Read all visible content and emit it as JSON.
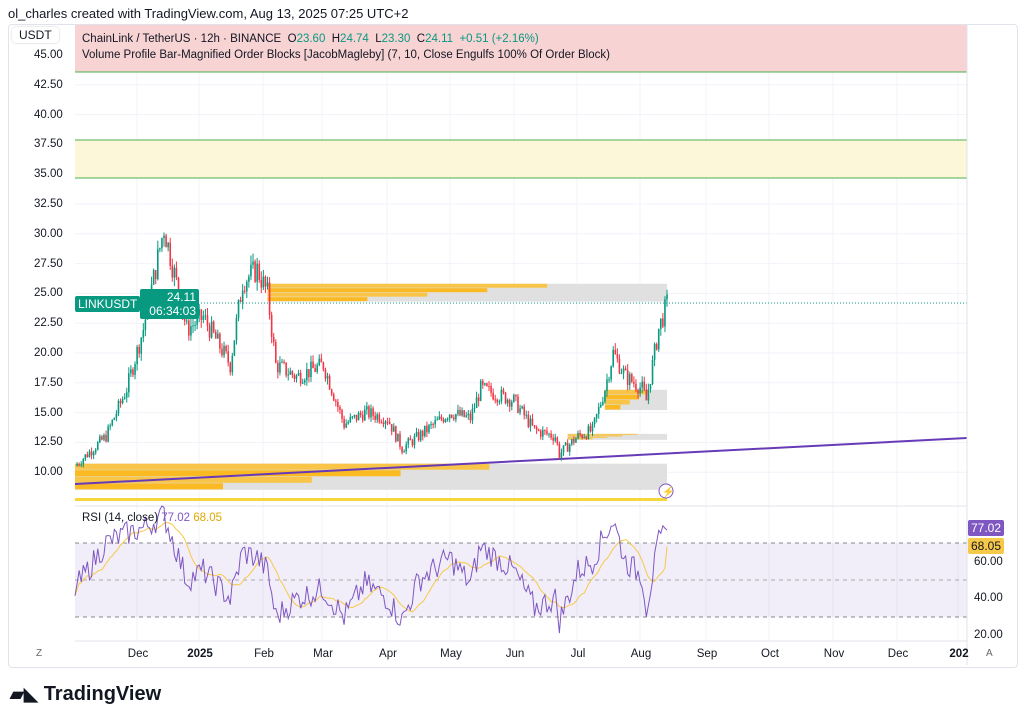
{
  "credit": "ol_charles created with TradingView.com, Aug 13, 2025 07:25 UTC+2",
  "currency": "USDT",
  "legend": {
    "symbol": "ChainLink / TetherUS · 12h · BINANCE",
    "o_label": "O",
    "o": "23.60",
    "h_label": "H",
    "h": "24.74",
    "l_label": "L",
    "l": "23.30",
    "c_label": "C",
    "c": "24.11",
    "change": "+0.51 (+2.16%)",
    "indicator": "Volume Profile Bar-Magnified Order Blocks [JacobMagleby] (7, 10, Close Engulfs 100% Of Order Block)"
  },
  "price_badge": {
    "symbol": "LINKUSDT",
    "price": "24.11",
    "countdown": "06:34:03"
  },
  "price_axis": [
    "45.00",
    "42.50",
    "40.00",
    "37.50",
    "35.00",
    "32.50",
    "30.00",
    "27.50",
    "25.00",
    "22.50",
    "20.00",
    "17.50",
    "15.00",
    "12.50",
    "10.00"
  ],
  "rsi": {
    "label": "RSI (14, close)",
    "value": "77.02",
    "ma": "68.05",
    "axis": [
      "60.00",
      "40.00",
      "20.00"
    ]
  },
  "time_axis": [
    "Dec",
    "2025",
    "Feb",
    "Mar",
    "Apr",
    "May",
    "Jun",
    "Jul",
    "Aug",
    "Sep",
    "Oct",
    "Nov",
    "Dec",
    "202"
  ],
  "buttons": {
    "z": "Z",
    "a": "A"
  },
  "brand": "TradingView",
  "colors": {
    "up": "#089981",
    "down": "#f23645",
    "rsi": "#7e57c2",
    "rsi_ma": "#f7c948",
    "trend": "#673ab7"
  },
  "chart_data": {
    "type": "candlestick",
    "symbol": "LINKUSDT",
    "interval": "12h",
    "dates": [
      "2024-10-31",
      "2024-11-15",
      "2024-11-25",
      "2024-12-03",
      "2024-12-13",
      "2024-12-24",
      "2025-01-01",
      "2025-01-14",
      "2025-01-20",
      "2025-01-27",
      "2025-02-01",
      "2025-02-05",
      "2025-02-15",
      "2025-02-28",
      "2025-03-10",
      "2025-03-20",
      "2025-03-31",
      "2025-04-07",
      "2025-04-15",
      "2025-04-30",
      "2025-05-10",
      "2025-05-15",
      "2025-05-31",
      "2025-06-10",
      "2025-06-20",
      "2025-06-22",
      "2025-07-01",
      "2025-07-08",
      "2025-07-14",
      "2025-07-18",
      "2025-07-24",
      "2025-08-01",
      "2025-08-03",
      "2025-08-09",
      "2025-08-13"
    ],
    "close": [
      10.5,
      13,
      17,
      22,
      30.5,
      22,
      23,
      19,
      26,
      27,
      25,
      19,
      18,
      19,
      14,
      15,
      14.5,
      12,
      13,
      15,
      14.5,
      17,
      16,
      13.5,
      13,
      11.5,
      13,
      13.5,
      17,
      20,
      18,
      17,
      16,
      22,
      24.11
    ],
    "rsi": [
      45,
      70,
      75,
      78,
      85,
      50,
      55,
      40,
      65,
      62,
      55,
      30,
      40,
      45,
      30,
      48,
      40,
      28,
      50,
      62,
      48,
      68,
      55,
      35,
      40,
      28,
      55,
      60,
      75,
      82,
      60,
      52,
      35,
      70,
      77
    ],
    "ylim": [
      8,
      45
    ],
    "rsi_levels": [
      70,
      50,
      30
    ],
    "zones": [
      {
        "type": "supply",
        "from": 43.6,
        "to": 46
      },
      {
        "type": "target",
        "from": 34.6,
        "to": 37.8
      }
    ],
    "order_blocks": [
      {
        "from": 24.3,
        "to": 25.8,
        "start": "2025-02-01"
      },
      {
        "from": 15.2,
        "to": 16.9,
        "start": "2025-07-14"
      },
      {
        "from": 12.7,
        "to": 13.2,
        "start": "2025-06-26"
      },
      {
        "from": 8.5,
        "to": 10.7,
        "start": "2024-10-31"
      }
    ],
    "trendline": {
      "start": [
        "2024-10-31",
        9.0
      ],
      "end": [
        "2026-01-05",
        12.8
      ]
    }
  }
}
